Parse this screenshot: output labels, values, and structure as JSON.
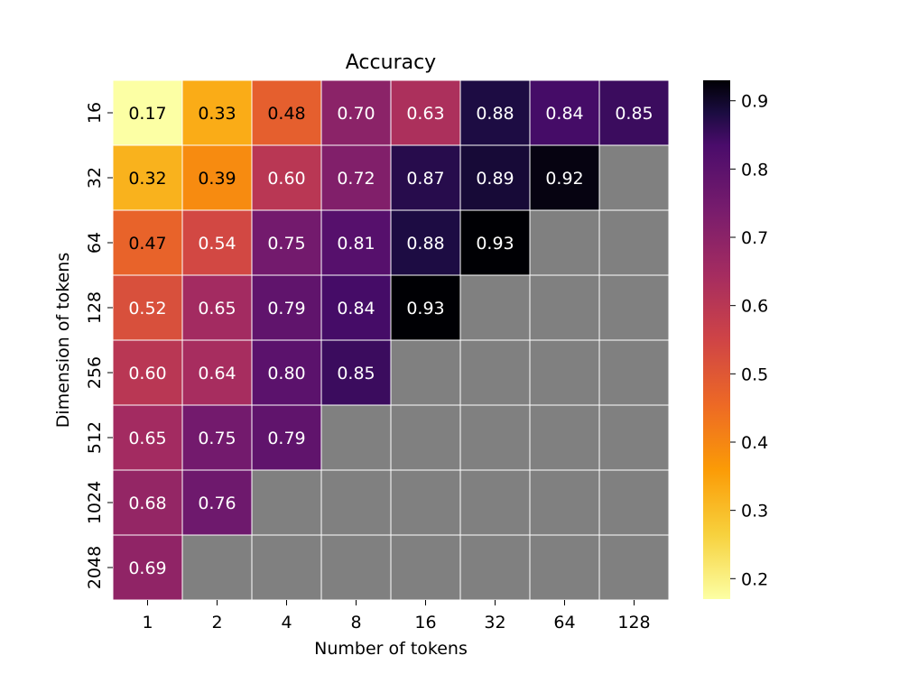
{
  "chart_data": {
    "type": "heatmap",
    "title": "Accuracy",
    "xlabel": "Number of tokens",
    "ylabel": "Dimension of tokens",
    "x_categories": [
      "1",
      "2",
      "4",
      "8",
      "16",
      "32",
      "64",
      "128"
    ],
    "y_categories": [
      "16",
      "32",
      "64",
      "128",
      "256",
      "512",
      "1024",
      "2048"
    ],
    "values": [
      [
        0.17,
        0.33,
        0.48,
        0.7,
        0.63,
        0.88,
        0.84,
        0.85
      ],
      [
        0.32,
        0.39,
        0.6,
        0.72,
        0.87,
        0.89,
        0.92,
        null
      ],
      [
        0.47,
        0.54,
        0.75,
        0.81,
        0.88,
        0.93,
        null,
        null
      ],
      [
        0.52,
        0.65,
        0.79,
        0.84,
        0.93,
        null,
        null,
        null
      ],
      [
        0.6,
        0.64,
        0.8,
        0.85,
        null,
        null,
        null,
        null
      ],
      [
        0.65,
        0.75,
        0.79,
        null,
        null,
        null,
        null,
        null
      ],
      [
        0.68,
        0.76,
        null,
        null,
        null,
        null,
        null,
        null
      ],
      [
        0.69,
        null,
        null,
        null,
        null,
        null,
        null,
        null
      ]
    ],
    "missing_color": "#808080",
    "colormap": "inferno_r",
    "colorbar": {
      "vmin": 0.17,
      "vmax": 0.93,
      "ticks": [
        0.2,
        0.3,
        0.4,
        0.5,
        0.6,
        0.7,
        0.8,
        0.9
      ],
      "tick_labels": [
        "0.2",
        "0.3",
        "0.4",
        "0.5",
        "0.6",
        "0.7",
        "0.8",
        "0.9"
      ]
    }
  }
}
